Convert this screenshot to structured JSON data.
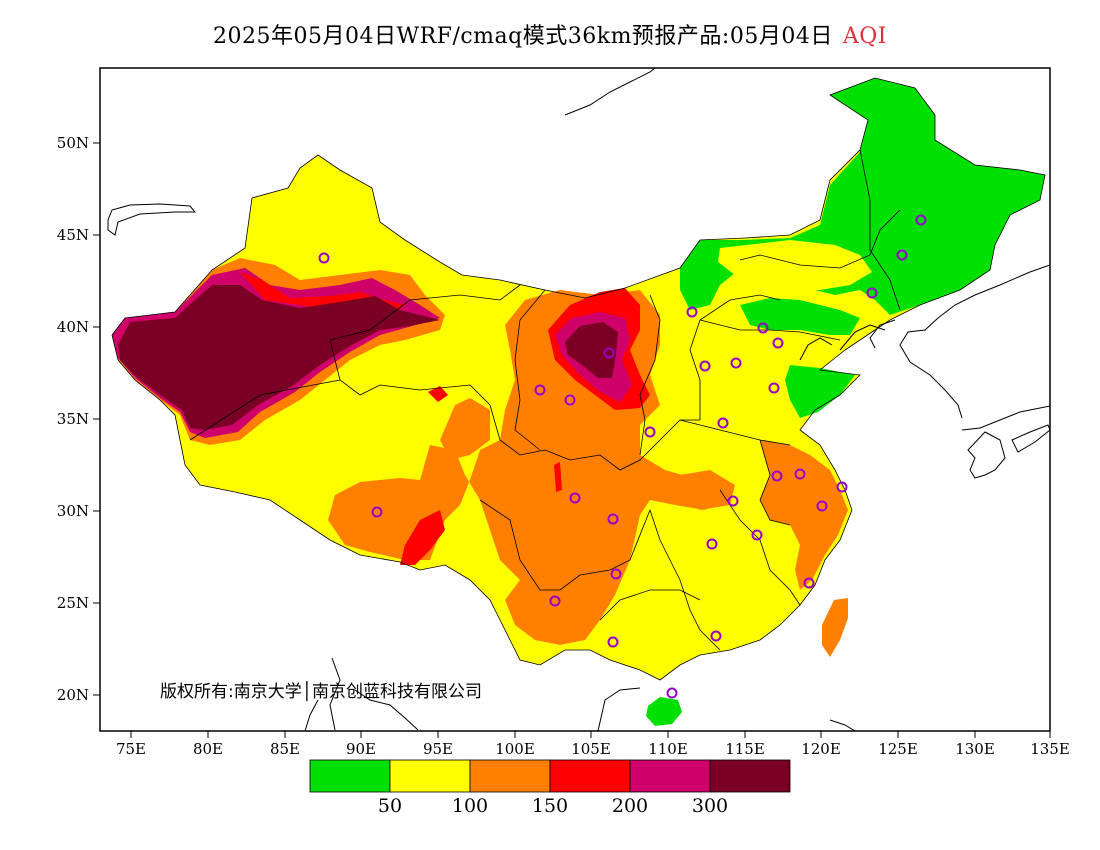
{
  "title": {
    "main": "2025年05月04日WRF/cmaq模式36km预报产品:05月04日",
    "variable": "AQI"
  },
  "copyright": "版权所有:南京大学│南京创蓝科技有限公司",
  "axes": {
    "x_ticks": [
      "75E",
      "80E",
      "85E",
      "90E",
      "95E",
      "100E",
      "105E",
      "110E",
      "115E",
      "120E",
      "125E",
      "130E",
      "135E"
    ],
    "y_ticks": [
      "50N",
      "45N",
      "40N",
      "35N",
      "30N",
      "25N",
      "20N"
    ]
  },
  "legend": {
    "colors": [
      "#00e000",
      "#ffff00",
      "#ff8000",
      "#ff0000",
      "#d0006a",
      "#7a0024"
    ],
    "labels": [
      "50",
      "100",
      "150",
      "200",
      "300"
    ]
  },
  "colors": {
    "good": "#00e000",
    "moderate": "#ffff00",
    "usg": "#ff8000",
    "unhealthy": "#ff0000",
    "very_unhealthy": "#d0006a",
    "hazardous": "#7a0024",
    "city_marker": "#9900cc"
  }
}
